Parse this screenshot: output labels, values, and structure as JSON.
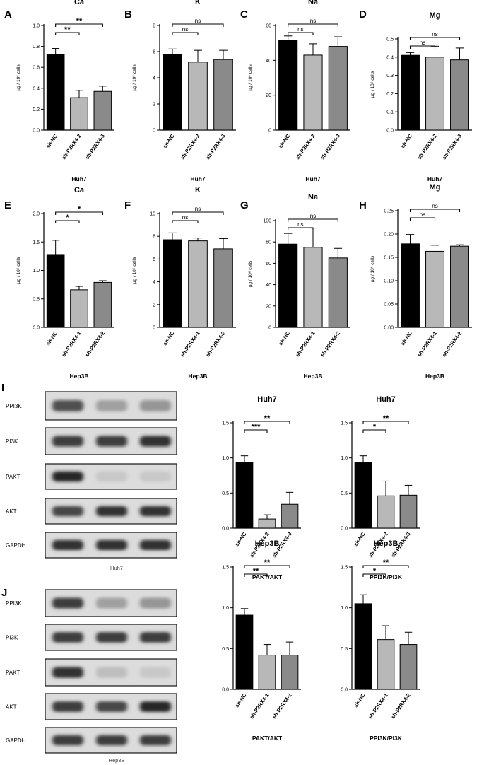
{
  "unit_label": "µg / 10⁶ cells",
  "panel_labels": [
    "A",
    "B",
    "C",
    "D",
    "E",
    "F",
    "G",
    "H",
    "I",
    "J"
  ],
  "colors": {
    "sh_nc": "#000000",
    "sh_1": "#b8b8b8",
    "sh_2": "#8a8a8a",
    "axis": "#000000"
  },
  "chart_data": [
    {
      "id": "A",
      "type": "bar",
      "title": "Ca",
      "xlabel": "Huh7",
      "ylabel": "µg / 10⁶ cells",
      "categories": [
        "sh-NC",
        "sh-P2RX4-2",
        "sh-P2RX4-3"
      ],
      "values": [
        0.72,
        0.31,
        0.37
      ],
      "errors": [
        0.06,
        0.07,
        0.05
      ],
      "ylim": [
        0,
        1.0
      ],
      "ticks": [
        0.0,
        0.2,
        0.4,
        0.6,
        0.8,
        1.0
      ],
      "sig": [
        {
          "from": 0,
          "to": 1,
          "label": "**"
        },
        {
          "from": 0,
          "to": 2,
          "label": "**"
        }
      ]
    },
    {
      "id": "B",
      "type": "bar",
      "title": "K",
      "xlabel": "Huh7",
      "ylabel": "µg / 10⁶ cells",
      "categories": [
        "sh-NC",
        "sh-P2RX4-2",
        "sh-P2RX4-3"
      ],
      "values": [
        5.8,
        5.2,
        5.4
      ],
      "errors": [
        0.4,
        0.9,
        0.7
      ],
      "ylim": [
        0,
        8
      ],
      "ticks": [
        0,
        2,
        4,
        6,
        8
      ],
      "sig": [
        {
          "from": 0,
          "to": 1,
          "label": "ns"
        },
        {
          "from": 0,
          "to": 2,
          "label": "ns"
        }
      ]
    },
    {
      "id": "C",
      "type": "bar",
      "title": "Na",
      "xlabel": "Huh7",
      "ylabel": "µg / 10⁶ cells",
      "categories": [
        "sh-NC",
        "sh-P2RX4-2",
        "sh-P2RX4-3"
      ],
      "values": [
        51.5,
        43,
        48
      ],
      "errors": [
        2.5,
        6.5,
        5.5
      ],
      "ylim": [
        0,
        60
      ],
      "ticks": [
        0,
        20,
        40,
        60
      ],
      "sig": [
        {
          "from": 0,
          "to": 1,
          "label": "ns"
        },
        {
          "from": 0,
          "to": 2,
          "label": "ns"
        }
      ]
    },
    {
      "id": "D",
      "type": "bar",
      "title": "Mg",
      "xlabel": "Huh7",
      "ylabel": "µg / 10⁶ cells",
      "categories": [
        "sh-NC",
        "sh-P2RX4-2",
        "sh-P2RX4-3"
      ],
      "values": [
        0.41,
        0.4,
        0.385
      ],
      "errors": [
        0.015,
        0.06,
        0.065
      ],
      "ylim": [
        0,
        0.5
      ],
      "ticks": [
        0.0,
        0.1,
        0.2,
        0.3,
        0.4,
        0.5
      ],
      "sig": [
        {
          "from": 0,
          "to": 1,
          "label": "ns"
        },
        {
          "from": 0,
          "to": 2,
          "label": "ns"
        }
      ]
    },
    {
      "id": "E",
      "type": "bar",
      "title": "Ca",
      "xlabel": "Hep3B",
      "ylabel": "µg / 10⁶ cells",
      "categories": [
        "sh-NC",
        "sh-P2RX4-1",
        "sh-P2RX4-2"
      ],
      "values": [
        1.28,
        0.66,
        0.79
      ],
      "errors": [
        0.25,
        0.06,
        0.03
      ],
      "ylim": [
        0,
        2.0
      ],
      "ticks": [
        0.0,
        0.5,
        1.0,
        1.5,
        2.0
      ],
      "sig": [
        {
          "from": 0,
          "to": 1,
          "label": "*"
        },
        {
          "from": 0,
          "to": 2,
          "label": "*"
        }
      ]
    },
    {
      "id": "F",
      "type": "bar",
      "title": "K",
      "xlabel": "Hep3B",
      "ylabel": "µg / 10⁶ cells",
      "categories": [
        "sh-NC",
        "sh-P2RX4-1",
        "sh-P2RX4-2"
      ],
      "values": [
        7.7,
        7.6,
        6.9
      ],
      "errors": [
        0.6,
        0.25,
        0.9
      ],
      "ylim": [
        0,
        10
      ],
      "ticks": [
        0,
        2,
        4,
        6,
        8,
        10
      ],
      "sig": [
        {
          "from": 0,
          "to": 1,
          "label": "ns"
        },
        {
          "from": 0,
          "to": 2,
          "label": "ns"
        }
      ]
    },
    {
      "id": "G",
      "type": "bar",
      "title": "Na",
      "xlabel": "Hep3B",
      "ylabel": "µg / 10⁶ cells",
      "categories": [
        "sh-NC",
        "sh-P2RX4-1",
        "sh-P2RX4-2"
      ],
      "values": [
        78,
        75,
        65
      ],
      "errors": [
        10,
        18,
        9
      ],
      "ylim": [
        0,
        100
      ],
      "ticks": [
        0,
        20,
        40,
        60,
        80,
        100
      ],
      "sig": [
        {
          "from": 0,
          "to": 1,
          "label": "ns"
        },
        {
          "from": 0,
          "to": 2,
          "label": "ns"
        }
      ]
    },
    {
      "id": "H",
      "type": "bar",
      "title": "Mg",
      "xlabel": "Hep3B",
      "ylabel": "µg / 10⁶ cells",
      "categories": [
        "sh-NC",
        "sh-P2RX4-1",
        "sh-P2RX4-2"
      ],
      "values": [
        0.179,
        0.163,
        0.174
      ],
      "errors": [
        0.02,
        0.013,
        0.003
      ],
      "ylim": [
        0,
        0.25
      ],
      "ticks": [
        0.0,
        0.05,
        0.1,
        0.15,
        0.2,
        0.25
      ],
      "sig": [
        {
          "from": 0,
          "to": 1,
          "label": "ns"
        },
        {
          "from": 0,
          "to": 2,
          "label": "ns"
        }
      ]
    },
    {
      "id": "I-1",
      "type": "bar",
      "title": "Huh7",
      "xlabel": "PAKT/AKT",
      "ylabel": "",
      "categories": [
        "sh-NC",
        "sh-P2RX4-2",
        "sh-P2RX4-3"
      ],
      "values": [
        0.94,
        0.13,
        0.34
      ],
      "errors": [
        0.09,
        0.06,
        0.17
      ],
      "ylim": [
        0,
        1.5
      ],
      "ticks": [
        0.0,
        0.5,
        1.0,
        1.5
      ],
      "sig": [
        {
          "from": 0,
          "to": 1,
          "label": "***"
        },
        {
          "from": 0,
          "to": 2,
          "label": "**"
        }
      ]
    },
    {
      "id": "I-2",
      "type": "bar",
      "title": "Huh7",
      "xlabel": "PPI3K/PI3K",
      "ylabel": "",
      "categories": [
        "sh-NC",
        "sh-P2RX4-2",
        "sh-P2RX4-3"
      ],
      "values": [
        0.94,
        0.46,
        0.47
      ],
      "errors": [
        0.09,
        0.21,
        0.14
      ],
      "ylim": [
        0,
        1.5
      ],
      "ticks": [
        0.0,
        0.5,
        1.0,
        1.5
      ],
      "sig": [
        {
          "from": 0,
          "to": 1,
          "label": "*"
        },
        {
          "from": 0,
          "to": 2,
          "label": "**"
        }
      ]
    },
    {
      "id": "J-1",
      "type": "bar",
      "title": "Hep3B",
      "xlabel": "PAKT/AKT",
      "ylabel": "",
      "categories": [
        "sh-NC",
        "sh-P2RX4-1",
        "sh-P2RX4-2"
      ],
      "values": [
        0.91,
        0.42,
        0.42
      ],
      "errors": [
        0.08,
        0.13,
        0.16
      ],
      "ylim": [
        0,
        1.5
      ],
      "ticks": [
        0.0,
        0.5,
        1.0,
        1.5
      ],
      "sig": [
        {
          "from": 0,
          "to": 1,
          "label": "**"
        },
        {
          "from": 0,
          "to": 2,
          "label": "**"
        }
      ]
    },
    {
      "id": "J-2",
      "type": "bar",
      "title": "Hep3B",
      "xlabel": "PPI3K/PI3K",
      "ylabel": "",
      "categories": [
        "sh-NC",
        "sh-P2RX4-1",
        "sh-P2RX4-2"
      ],
      "values": [
        1.05,
        0.61,
        0.55
      ],
      "errors": [
        0.11,
        0.17,
        0.15
      ],
      "ylim": [
        0,
        1.5
      ],
      "ticks": [
        0.0,
        0.5,
        1.0,
        1.5
      ],
      "sig": [
        {
          "from": 0,
          "to": 1,
          "label": "*"
        },
        {
          "from": 0,
          "to": 2,
          "label": "**"
        }
      ]
    }
  ],
  "blots": [
    {
      "id": "I",
      "caption": "Huh7",
      "rows": [
        {
          "label": "PPI3K",
          "intensity": [
            0.75,
            0.35,
            0.4
          ]
        },
        {
          "label": "PI3K",
          "intensity": [
            0.85,
            0.85,
            0.9
          ]
        },
        {
          "label": "PAKT",
          "intensity": [
            0.95,
            0.15,
            0.15
          ]
        },
        {
          "label": "AKT",
          "intensity": [
            0.8,
            0.9,
            0.9
          ]
        },
        {
          "label": "GAPDH",
          "intensity": [
            0.9,
            0.9,
            0.9
          ]
        }
      ]
    },
    {
      "id": "J",
      "caption": "Hep3B",
      "rows": [
        {
          "label": "PPI3K",
          "intensity": [
            0.85,
            0.35,
            0.4
          ]
        },
        {
          "label": "PI3K",
          "intensity": [
            0.85,
            0.85,
            0.85
          ]
        },
        {
          "label": "PAKT",
          "intensity": [
            0.9,
            0.2,
            0.15
          ]
        },
        {
          "label": "AKT",
          "intensity": [
            0.85,
            0.8,
            0.95
          ]
        },
        {
          "label": "GAPDH",
          "intensity": [
            0.85,
            0.85,
            0.85
          ]
        }
      ]
    }
  ]
}
